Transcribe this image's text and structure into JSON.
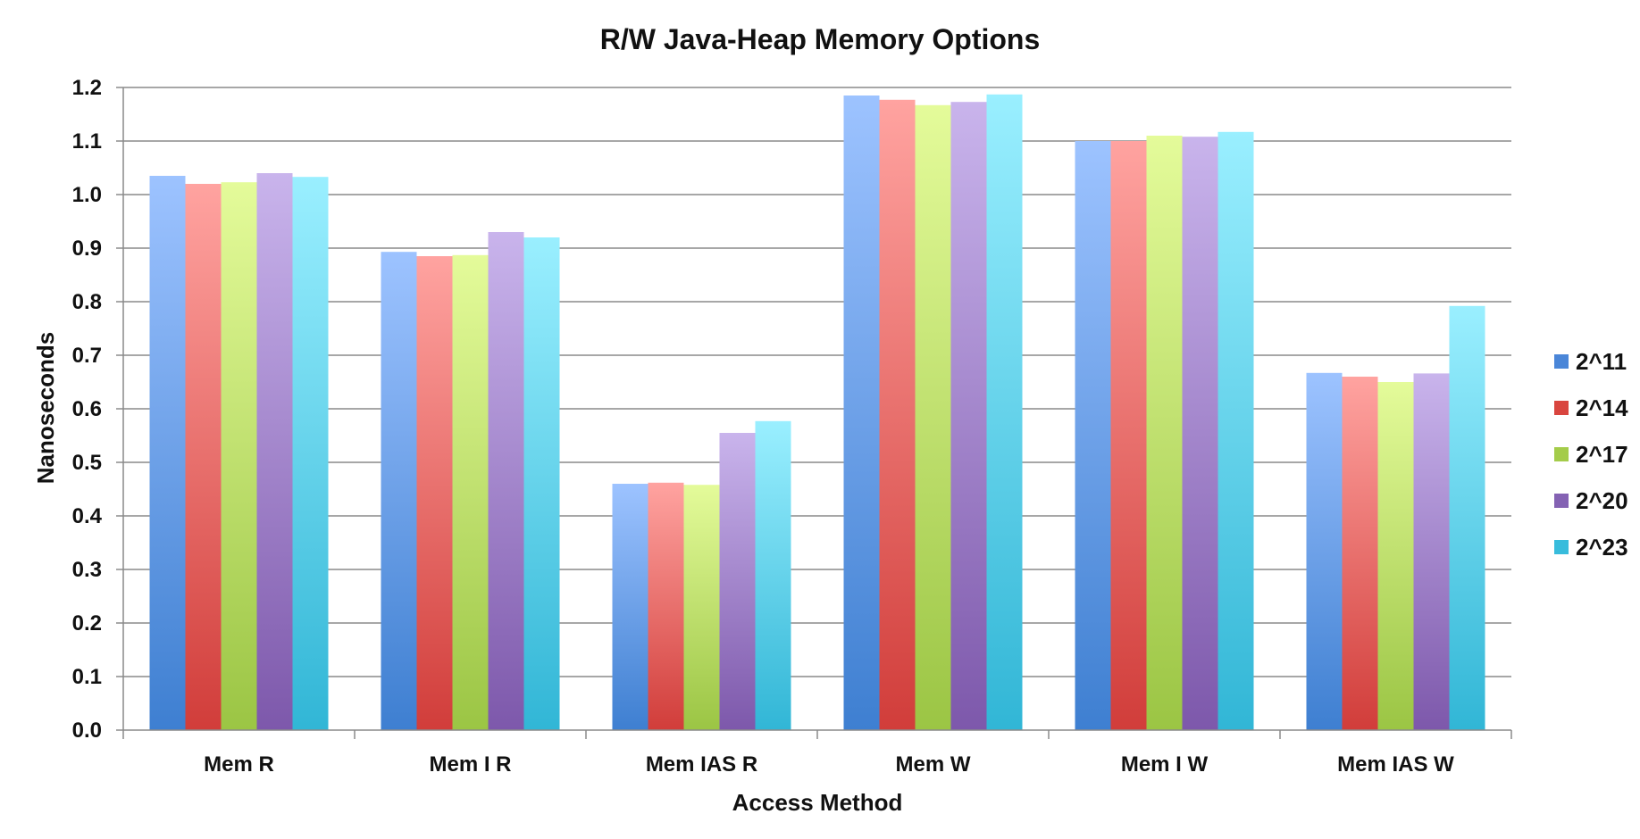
{
  "chart_data": {
    "type": "bar",
    "title": "R/W Java-Heap Memory Options",
    "xlabel": "Access Method",
    "ylabel": "Nanoseconds",
    "ylim": [
      0,
      1.2
    ],
    "ytick_step": 0.1,
    "grid": true,
    "legend_position": "right",
    "categories": [
      "Mem R",
      "Mem I R",
      "Mem IAS R",
      "Mem W",
      "Mem I W",
      "Mem IAS W"
    ],
    "series": [
      {
        "name": "2^11",
        "color_top": "#9dc3ff",
        "color_bottom": "#3e7fd1",
        "legend_color": "#4a86d8",
        "values": [
          1.035,
          0.893,
          0.46,
          1.185,
          1.1,
          0.667
        ]
      },
      {
        "name": "2^14",
        "color_top": "#ffa3a0",
        "color_bottom": "#d13d3a",
        "legend_color": "#d9453f",
        "values": [
          1.02,
          0.885,
          0.462,
          1.177,
          1.1,
          0.66
        ]
      },
      {
        "name": "2^17",
        "color_top": "#e4fb9a",
        "color_bottom": "#9bc544",
        "legend_color": "#a4cc4a",
        "values": [
          1.023,
          0.887,
          0.458,
          1.167,
          1.11,
          0.65
        ]
      },
      {
        "name": "2^20",
        "color_top": "#c9b4ec",
        "color_bottom": "#7d58ab",
        "legend_color": "#8462b3",
        "values": [
          1.04,
          0.93,
          0.555,
          1.173,
          1.108,
          0.666
        ]
      },
      {
        "name": "2^23",
        "color_top": "#9aefff",
        "color_bottom": "#31b6d6",
        "legend_color": "#38bcdc",
        "values": [
          1.033,
          0.92,
          0.577,
          1.187,
          1.117,
          0.792
        ]
      }
    ]
  }
}
